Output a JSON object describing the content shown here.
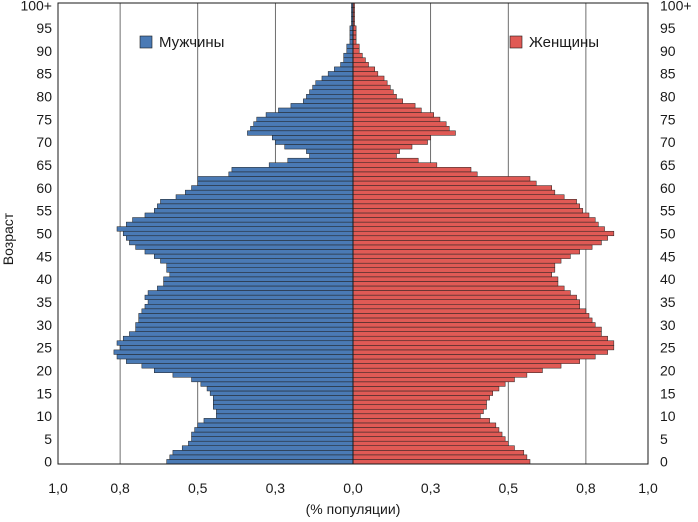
{
  "chart_data": {
    "type": "bar",
    "orientation": "horizontal",
    "layout": "population-pyramid",
    "title": "",
    "xlabel": "(% популяции)",
    "ylabel": "Возраст",
    "xlim": [
      -0.95,
      0.95
    ],
    "x_ticks": [
      {
        "v": -0.95,
        "label": "1,0"
      },
      {
        "v": -0.75,
        "label": "0,8"
      },
      {
        "v": -0.5,
        "label": "0,5"
      },
      {
        "v": -0.25,
        "label": "0,3"
      },
      {
        "v": 0,
        "label": "0,0"
      },
      {
        "v": 0.25,
        "label": "0,3"
      },
      {
        "v": 0.5,
        "label": "0,5"
      },
      {
        "v": 0.75,
        "label": "0,8"
      },
      {
        "v": 0.95,
        "label": "1,0"
      }
    ],
    "age_ticks": [
      {
        "age": 0,
        "label": "0"
      },
      {
        "age": 5,
        "label": "5"
      },
      {
        "age": 10,
        "label": "10"
      },
      {
        "age": 15,
        "label": "15"
      },
      {
        "age": 20,
        "label": "20"
      },
      {
        "age": 25,
        "label": "25"
      },
      {
        "age": 30,
        "label": "30"
      },
      {
        "age": 35,
        "label": "35"
      },
      {
        "age": 40,
        "label": "40"
      },
      {
        "age": 45,
        "label": "45"
      },
      {
        "age": 50,
        "label": "50"
      },
      {
        "age": 55,
        "label": "55"
      },
      {
        "age": 60,
        "label": "60"
      },
      {
        "age": 65,
        "label": "65"
      },
      {
        "age": 70,
        "label": "70"
      },
      {
        "age": 75,
        "label": "75"
      },
      {
        "age": 80,
        "label": "80"
      },
      {
        "age": 85,
        "label": "85"
      },
      {
        "age": 90,
        "label": "90"
      },
      {
        "age": 95,
        "label": "95"
      },
      {
        "age": 100,
        "label": "100+"
      }
    ],
    "grid": true,
    "legend_position": "top",
    "ages": [
      0,
      1,
      2,
      3,
      4,
      5,
      6,
      7,
      8,
      9,
      10,
      11,
      12,
      13,
      14,
      15,
      16,
      17,
      18,
      19,
      20,
      21,
      22,
      23,
      24,
      25,
      26,
      27,
      28,
      29,
      30,
      31,
      32,
      33,
      34,
      35,
      36,
      37,
      38,
      39,
      40,
      41,
      42,
      43,
      44,
      45,
      46,
      47,
      48,
      49,
      50,
      51,
      52,
      53,
      54,
      55,
      56,
      57,
      58,
      59,
      60,
      61,
      62,
      63,
      64,
      65,
      66,
      67,
      68,
      69,
      70,
      71,
      72,
      73,
      74,
      75,
      76,
      77,
      78,
      79,
      80,
      81,
      82,
      83,
      84,
      85,
      86,
      87,
      88,
      89,
      90,
      91,
      92,
      93,
      94,
      95,
      96,
      97,
      98,
      99,
      100
    ],
    "series": [
      {
        "name": "Мужчины",
        "color": "#4a7ab5",
        "values": [
          0.6,
          0.59,
          0.58,
          0.55,
          0.53,
          0.52,
          0.52,
          0.51,
          0.5,
          0.48,
          0.44,
          0.44,
          0.45,
          0.45,
          0.45,
          0.46,
          0.47,
          0.49,
          0.52,
          0.58,
          0.64,
          0.68,
          0.73,
          0.76,
          0.77,
          0.75,
          0.76,
          0.74,
          0.72,
          0.7,
          0.7,
          0.69,
          0.69,
          0.68,
          0.67,
          0.66,
          0.67,
          0.66,
          0.63,
          0.61,
          0.61,
          0.59,
          0.6,
          0.6,
          0.62,
          0.64,
          0.67,
          0.7,
          0.72,
          0.73,
          0.74,
          0.76,
          0.73,
          0.71,
          0.67,
          0.64,
          0.63,
          0.62,
          0.57,
          0.54,
          0.52,
          0.5,
          0.5,
          0.4,
          0.39,
          0.27,
          0.21,
          0.14,
          0.15,
          0.22,
          0.25,
          0.26,
          0.34,
          0.33,
          0.32,
          0.31,
          0.28,
          0.24,
          0.2,
          0.16,
          0.15,
          0.14,
          0.13,
          0.12,
          0.1,
          0.08,
          0.06,
          0.04,
          0.03,
          0.03,
          0.02,
          0.02,
          0.01,
          0.01,
          0.01,
          0.01,
          0.005,
          0.005,
          0.005,
          0.005,
          0.005
        ]
      },
      {
        "name": "Женщины",
        "color": "#e05a55",
        "values": [
          0.57,
          0.56,
          0.55,
          0.52,
          0.5,
          0.49,
          0.48,
          0.47,
          0.46,
          0.44,
          0.41,
          0.42,
          0.43,
          0.43,
          0.44,
          0.45,
          0.47,
          0.49,
          0.52,
          0.56,
          0.61,
          0.67,
          0.73,
          0.78,
          0.82,
          0.84,
          0.84,
          0.82,
          0.8,
          0.8,
          0.78,
          0.77,
          0.76,
          0.75,
          0.73,
          0.73,
          0.72,
          0.7,
          0.68,
          0.66,
          0.66,
          0.64,
          0.65,
          0.65,
          0.67,
          0.7,
          0.73,
          0.77,
          0.8,
          0.82,
          0.84,
          0.81,
          0.79,
          0.78,
          0.76,
          0.74,
          0.73,
          0.72,
          0.68,
          0.65,
          0.64,
          0.59,
          0.57,
          0.4,
          0.38,
          0.27,
          0.21,
          0.14,
          0.15,
          0.19,
          0.24,
          0.25,
          0.33,
          0.31,
          0.3,
          0.28,
          0.26,
          0.22,
          0.2,
          0.16,
          0.14,
          0.13,
          0.12,
          0.11,
          0.1,
          0.08,
          0.07,
          0.05,
          0.04,
          0.03,
          0.02,
          0.02,
          0.01,
          0.01,
          0.01,
          0.01,
          0.005,
          0.005,
          0.005,
          0.005,
          0.005
        ]
      }
    ]
  }
}
